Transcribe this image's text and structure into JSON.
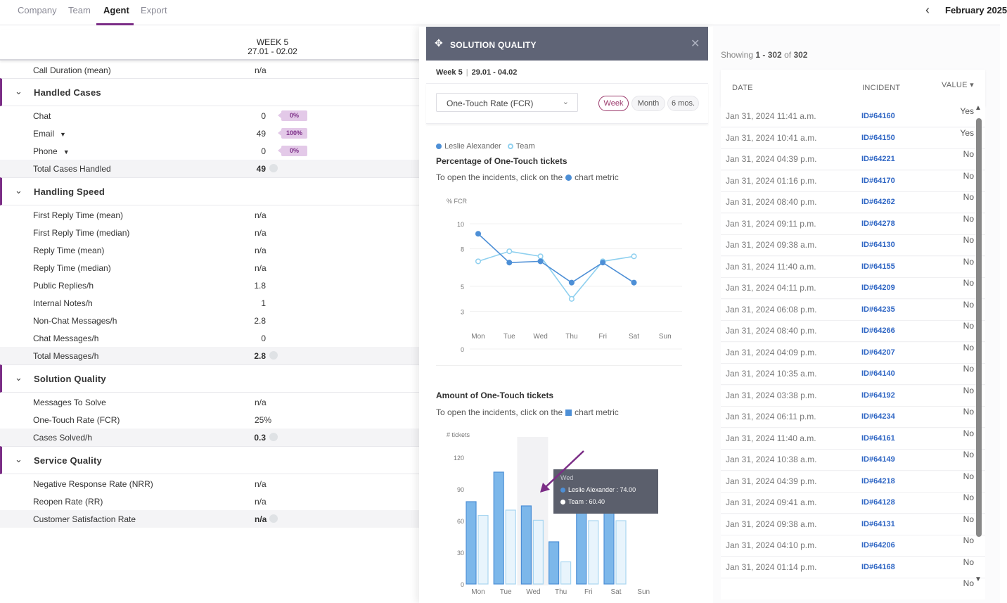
{
  "nav": {
    "tabs": [
      "Company",
      "Team",
      "Agent",
      "Export"
    ],
    "active_tab": "Agent",
    "period": "February 2025"
  },
  "left": {
    "week_label": "WEEK 5",
    "week_range": "27.01 - 02.02",
    "call_duration": {
      "label": "Call Duration (mean)",
      "value": "n/a"
    },
    "sections": [
      {
        "title": "Handled Cases",
        "rows": [
          {
            "label": "Chat",
            "value": "0",
            "pill": "0%"
          },
          {
            "label": "Email",
            "value": "49",
            "pill": "100%",
            "caret": true
          },
          {
            "label": "Phone",
            "value": "0",
            "pill": "0%",
            "caret": true
          },
          {
            "label": "Total Cases Handled",
            "value": "49",
            "total": true
          }
        ]
      },
      {
        "title": "Handling Speed",
        "rows": [
          {
            "label": "First Reply Time (mean)",
            "value": "n/a"
          },
          {
            "label": "First Reply Time (median)",
            "value": "n/a"
          },
          {
            "label": "Reply Time (mean)",
            "value": "n/a"
          },
          {
            "label": "Reply Time (median)",
            "value": "n/a"
          },
          {
            "label": "Public Replies/h",
            "value": "1.8"
          },
          {
            "label": "Internal Notes/h",
            "value": "1"
          },
          {
            "label": "Non-Chat Messages/h",
            "value": "2.8"
          },
          {
            "label": "Chat Messages/h",
            "value": "0"
          },
          {
            "label": "Total Messages/h",
            "value": "2.8",
            "total": true
          }
        ]
      },
      {
        "title": "Solution Quality",
        "rows": [
          {
            "label": "Messages To Solve",
            "value": "n/a"
          },
          {
            "label": "One-Touch Rate (FCR)",
            "value": "25%"
          },
          {
            "label": "Cases Solved/h",
            "value": "0.3",
            "total": true
          }
        ]
      },
      {
        "title": "Service Quality",
        "rows": [
          {
            "label": "Negative Response Rate (NRR)",
            "value": "n/a"
          },
          {
            "label": "Reopen Rate (RR)",
            "value": "n/a"
          },
          {
            "label": "Customer Satisfaction Rate",
            "value": "n/a",
            "total": true
          }
        ]
      }
    ]
  },
  "modal": {
    "title": "SOLUTION QUALITY",
    "week": "Week 5",
    "range": "29.01 - 04.02",
    "select_value": "One-Touch Rate (FCR)",
    "periods": [
      "Week",
      "Month",
      "6 mos."
    ],
    "active_period": "Week",
    "legend": [
      "Leslie Alexander",
      "Team"
    ],
    "line_title": "Percentage of One-Touch tickets",
    "bar_title": "Amount of One-Touch tickets",
    "hint_prefix": "To open the incidents, click on the",
    "hint_suffix": "chart metric",
    "tooltip": {
      "day": "Wed",
      "agent_row": "Leslie Alexander : 74.00",
      "team_row": "Team : 60.40"
    },
    "colors": {
      "agent": "#4d8fd6",
      "team": "#8fd0ef",
      "accent": "#7b2d86"
    }
  },
  "chart_data": [
    {
      "type": "line",
      "title": "Percentage of One-Touch tickets",
      "ylabel": "% FCR",
      "categories": [
        "Mon",
        "Tue",
        "Wed",
        "Thu",
        "Fri",
        "Sat",
        "Sun"
      ],
      "yticks": [
        0,
        3,
        5,
        8,
        10
      ],
      "ylim": [
        0,
        10
      ],
      "series": [
        {
          "name": "Leslie Alexander",
          "values": [
            9.2,
            6.9,
            7.0,
            5.3,
            6.9,
            5.3,
            null
          ]
        },
        {
          "name": "Team",
          "values": [
            7.0,
            7.8,
            7.4,
            4.0,
            7.0,
            7.4,
            null
          ]
        }
      ]
    },
    {
      "type": "bar",
      "title": "Amount of One-Touch tickets",
      "ylabel": "# tickets",
      "categories": [
        "Mon",
        "Tue",
        "Wed",
        "Thu",
        "Fri",
        "Sat",
        "Sun"
      ],
      "yticks": [
        0,
        30,
        60,
        90,
        120
      ],
      "ylim": [
        0,
        120
      ],
      "series": [
        {
          "name": "Leslie Alexander",
          "values": [
            78,
            106,
            74,
            40,
            72,
            72,
            null
          ]
        },
        {
          "name": "Team",
          "values": [
            65,
            70,
            60.4,
            21,
            60,
            60,
            null
          ]
        }
      ]
    }
  ],
  "incidents": {
    "showing_prefix": "Showing",
    "showing_range": "1 - 302",
    "showing_of": "of",
    "showing_total": "302",
    "headers": [
      "DATE",
      "INCIDENT",
      "VALUE"
    ],
    "rows": [
      {
        "date": "Jan 31, 2024 11:41 a.m.",
        "id": "ID#64160",
        "value": "Yes"
      },
      {
        "date": "Jan 31, 2024 10:41 a.m.",
        "id": "ID#64150",
        "value": "Yes"
      },
      {
        "date": "Jan 31, 2024 04:39 p.m.",
        "id": "ID#64221",
        "value": "No"
      },
      {
        "date": "Jan 31, 2024 01:16 p.m.",
        "id": "ID#64170",
        "value": "No"
      },
      {
        "date": "Jan 31, 2024 08:40 p.m.",
        "id": "ID#64262",
        "value": "No"
      },
      {
        "date": "Jan 31, 2024 09:11 p.m.",
        "id": "ID#64278",
        "value": "No"
      },
      {
        "date": "Jan 31, 2024 09:38 a.m.",
        "id": "ID#64130",
        "value": "No"
      },
      {
        "date": "Jan 31, 2024 11:40 a.m.",
        "id": "ID#64155",
        "value": "No"
      },
      {
        "date": "Jan 31, 2024 04:11 p.m.",
        "id": "ID#64209",
        "value": "No"
      },
      {
        "date": "Jan 31, 2024 06:08 p.m.",
        "id": "ID#64235",
        "value": "No"
      },
      {
        "date": "Jan 31, 2024 08:40 p.m.",
        "id": "ID#64266",
        "value": "No"
      },
      {
        "date": "Jan 31, 2024 04:09 p.m.",
        "id": "ID#64207",
        "value": "No"
      },
      {
        "date": "Jan 31, 2024 10:35 a.m.",
        "id": "ID#64140",
        "value": "No"
      },
      {
        "date": "Jan 31, 2024 03:38 p.m.",
        "id": "ID#64192",
        "value": "No"
      },
      {
        "date": "Jan 31, 2024 06:11 p.m.",
        "id": "ID#64234",
        "value": "No"
      },
      {
        "date": "Jan 31, 2024 11:40 a.m.",
        "id": "ID#64161",
        "value": "No"
      },
      {
        "date": "Jan 31, 2024 10:38 a.m.",
        "id": "ID#64149",
        "value": "No"
      },
      {
        "date": "Jan 31, 2024 04:39 p.m.",
        "id": "ID#64218",
        "value": "No"
      },
      {
        "date": "Jan 31, 2024 09:41 a.m.",
        "id": "ID#64128",
        "value": "No"
      },
      {
        "date": "Jan 31, 2024 09:38 a.m.",
        "id": "ID#64131",
        "value": "No"
      },
      {
        "date": "Jan 31, 2024 04:10 p.m.",
        "id": "ID#64206",
        "value": "No"
      },
      {
        "date": "Jan 31, 2024 01:14 p.m.",
        "id": "ID#64168",
        "value": "No"
      }
    ],
    "trailing_value": "No"
  }
}
